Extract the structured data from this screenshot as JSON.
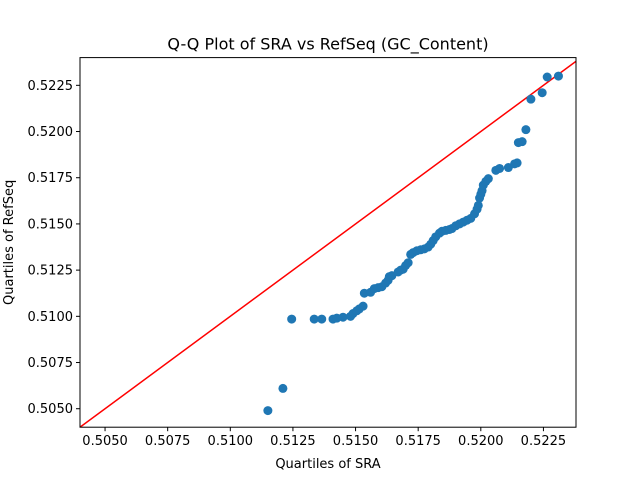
{
  "chart_data": {
    "type": "scatter",
    "title": "Q-Q Plot of SRA vs RefSeq (GC_Content)",
    "xlabel": "Quartiles of SRA",
    "ylabel": "Quartiles of RefSeq",
    "xlim": [
      0.504,
      0.5238
    ],
    "ylim": [
      0.504,
      0.524
    ],
    "xticks": [
      "0.5050",
      "0.5075",
      "0.5100",
      "0.5125",
      "0.5150",
      "0.5175",
      "0.5200",
      "0.5225"
    ],
    "yticks": [
      "0.5050",
      "0.5075",
      "0.5100",
      "0.5125",
      "0.5150",
      "0.5175",
      "0.5200",
      "0.5225"
    ],
    "reference_line": {
      "color": "#ff0000",
      "from": [
        0.504,
        0.504
      ],
      "to": [
        0.524,
        0.524
      ]
    },
    "marker_color": "#1f77b4",
    "grid": false,
    "points": [
      [
        0.5115,
        0.5049
      ],
      [
        0.5121,
        0.5061
      ],
      [
        0.51245,
        0.50985
      ],
      [
        0.51335,
        0.50985
      ],
      [
        0.51365,
        0.50985
      ],
      [
        0.5141,
        0.50985
      ],
      [
        0.51425,
        0.5099
      ],
      [
        0.5145,
        0.50995
      ],
      [
        0.5148,
        0.51
      ],
      [
        0.5149,
        0.51015
      ],
      [
        0.51505,
        0.5103
      ],
      [
        0.51515,
        0.5104
      ],
      [
        0.5153,
        0.51055
      ],
      [
        0.51535,
        0.51125
      ],
      [
        0.5156,
        0.5113
      ],
      [
        0.51575,
        0.5115
      ],
      [
        0.5159,
        0.51155
      ],
      [
        0.51605,
        0.5116
      ],
      [
        0.5162,
        0.5118
      ],
      [
        0.5163,
        0.51195
      ],
      [
        0.51635,
        0.51215
      ],
      [
        0.51645,
        0.5122
      ],
      [
        0.5167,
        0.5124
      ],
      [
        0.5168,
        0.5125
      ],
      [
        0.5169,
        0.51255
      ],
      [
        0.517,
        0.51275
      ],
      [
        0.5171,
        0.5129
      ],
      [
        0.5172,
        0.51335
      ],
      [
        0.5173,
        0.51345
      ],
      [
        0.51745,
        0.51355
      ],
      [
        0.5176,
        0.5136
      ],
      [
        0.51775,
        0.51365
      ],
      [
        0.5179,
        0.51375
      ],
      [
        0.518,
        0.5139
      ],
      [
        0.5181,
        0.5141
      ],
      [
        0.5182,
        0.5143
      ],
      [
        0.51835,
        0.5145
      ],
      [
        0.51845,
        0.5146
      ],
      [
        0.5186,
        0.51465
      ],
      [
        0.51875,
        0.5147
      ],
      [
        0.51885,
        0.51475
      ],
      [
        0.519,
        0.5149
      ],
      [
        0.51915,
        0.515
      ],
      [
        0.5193,
        0.5151
      ],
      [
        0.51945,
        0.5152
      ],
      [
        0.5196,
        0.5153
      ],
      [
        0.51975,
        0.51555
      ],
      [
        0.51985,
        0.5158
      ],
      [
        0.5199,
        0.516
      ],
      [
        0.51995,
        0.5164
      ],
      [
        0.52,
        0.5166
      ],
      [
        0.52005,
        0.5168
      ],
      [
        0.5201,
        0.5171
      ],
      [
        0.5202,
        0.5173
      ],
      [
        0.5203,
        0.51745
      ],
      [
        0.5206,
        0.5179
      ],
      [
        0.52075,
        0.518
      ],
      [
        0.5211,
        0.51805
      ],
      [
        0.52135,
        0.51825
      ],
      [
        0.52145,
        0.5183
      ],
      [
        0.5215,
        0.5194
      ],
      [
        0.52165,
        0.51945
      ],
      [
        0.5218,
        0.5201
      ],
      [
        0.522,
        0.52175
      ],
      [
        0.52245,
        0.5221
      ],
      [
        0.52265,
        0.52295
      ],
      [
        0.5231,
        0.523
      ]
    ]
  }
}
